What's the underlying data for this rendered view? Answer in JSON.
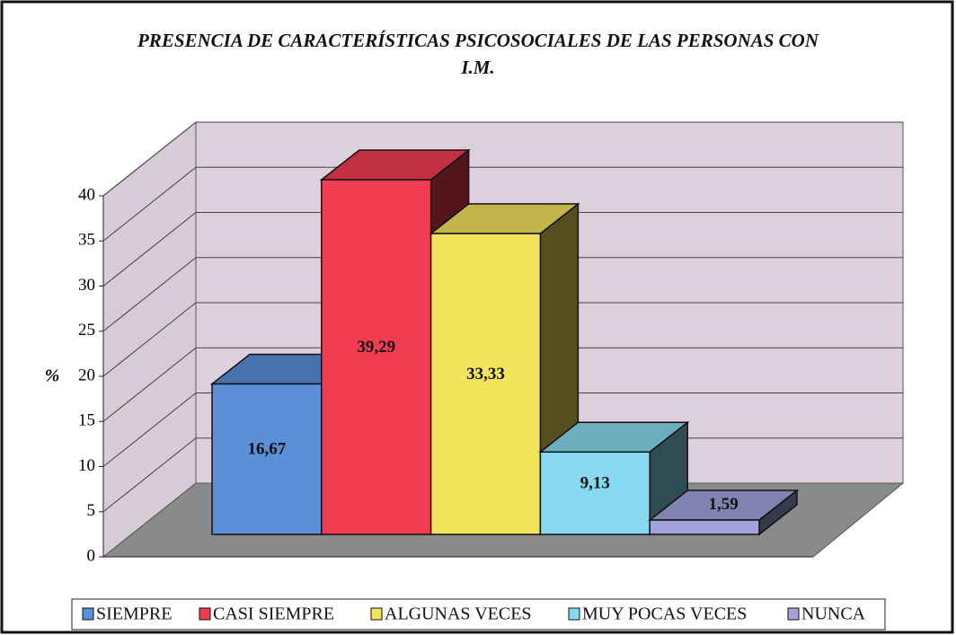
{
  "chart_data": {
    "type": "bar3d",
    "title": "PRESENCIA DE CARACTERÍSTICAS PSICOSOCIALES DE LAS PERSONAS CON I.M.",
    "y_label": "%",
    "ylim": [
      0,
      40
    ],
    "yticks": [
      0,
      5,
      10,
      15,
      20,
      25,
      30,
      35,
      40
    ],
    "grid": true,
    "legend": "bottom",
    "series": [
      {
        "name": "SIEMPRE",
        "color": "#5b8fd8",
        "values": [
          16.67
        ],
        "value_labels": [
          "16,67"
        ]
      },
      {
        "name": "CASI SIEMPRE",
        "color": "#f23c52",
        "values": [
          39.29
        ],
        "value_labels": [
          "39,29"
        ]
      },
      {
        "name": "ALGUNAS VECES",
        "color": "#f3e35c",
        "values": [
          33.33
        ],
        "value_labels": [
          "33,33"
        ]
      },
      {
        "name": "MUY POCAS VECES",
        "color": "#86d9ee",
        "values": [
          9.13
        ],
        "value_labels": [
          "9,13"
        ]
      },
      {
        "name": "NUNCA",
        "color": "#a3a3dc",
        "values": [
          1.59
        ],
        "value_labels": [
          "1,59"
        ]
      }
    ]
  }
}
